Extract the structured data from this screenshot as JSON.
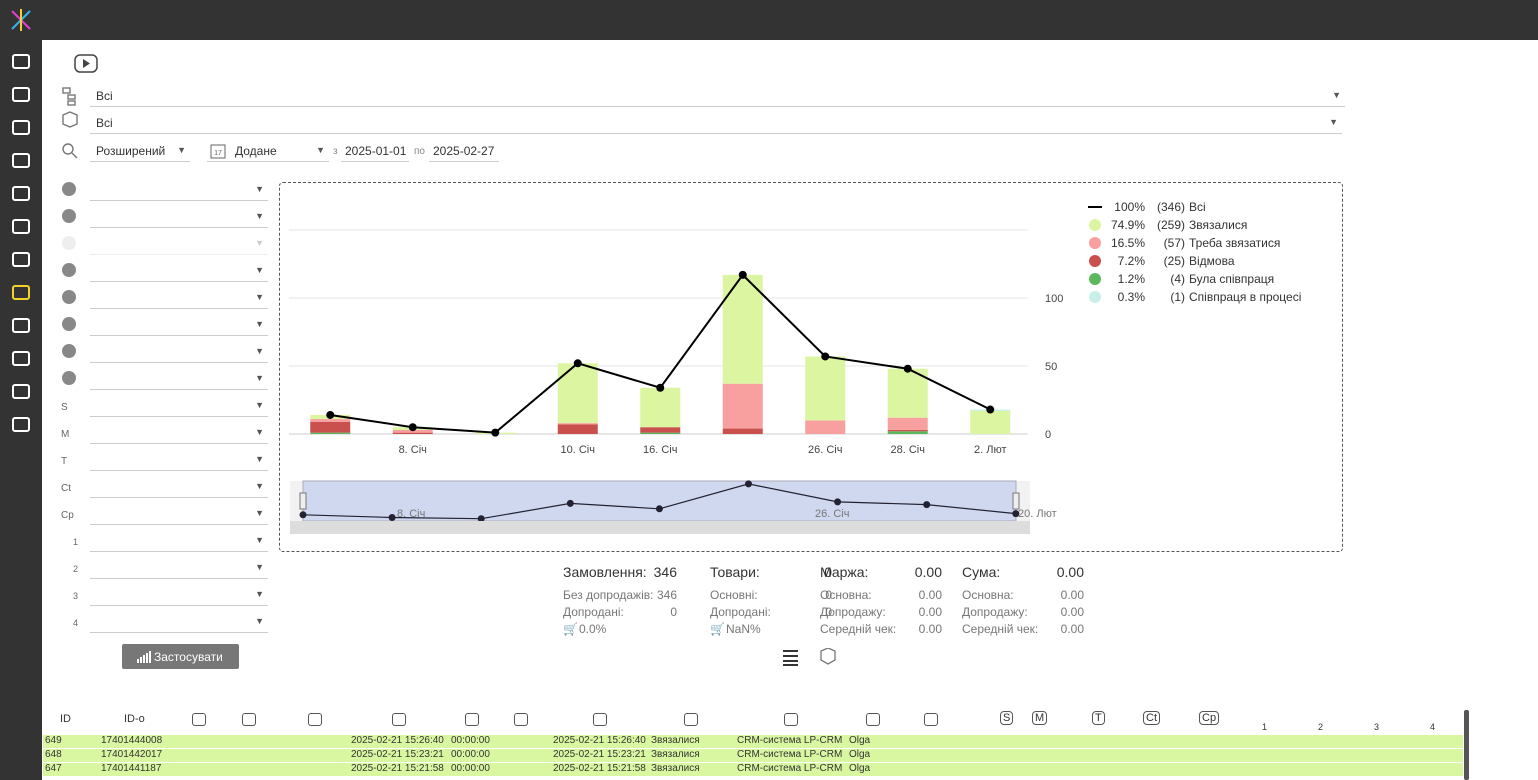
{
  "filters": {
    "branch": "Всі",
    "product": "Всі",
    "search_mode": "Розширений",
    "date_field": "Додане",
    "from_label": "з",
    "from": "2025-01-01",
    "to_label": "по",
    "to": "2025-02-27",
    "apply": "Застосувати",
    "icon_labels": [
      "S",
      "M",
      "T",
      "Ct",
      "Cp",
      "1",
      "2",
      "3",
      "4"
    ]
  },
  "chart_data": {
    "type": "bar",
    "stacked": true,
    "categories": [
      null,
      "8. Січ",
      null,
      "10. Січ",
      "16. Січ",
      null,
      "26. Січ",
      "28. Січ",
      "2. Лют"
    ],
    "ylim": [
      0,
      150
    ],
    "yticks": [
      0,
      50,
      100
    ],
    "grid": true,
    "legend": "right",
    "series": [
      {
        "name": "Всі",
        "type": "line",
        "color": "#000000",
        "values": [
          14,
          5,
          1,
          52,
          34,
          117,
          57,
          48,
          18
        ],
        "percent_label": "100%",
        "count_label": "(346)"
      },
      {
        "name": "Звязалися",
        "color": "#dcf5a0",
        "values": [
          3,
          2,
          1,
          44,
          29,
          80,
          47,
          36,
          17
        ],
        "percent_label": "74.9%",
        "count_label": "(259)"
      },
      {
        "name": "Треба звязатися",
        "color": "#f8a0a0",
        "values": [
          2,
          2,
          0,
          1,
          0,
          33,
          10,
          9,
          0
        ],
        "percent_label": "16.5%",
        "count_label": "(57)"
      },
      {
        "name": "Відмова",
        "color": "#c9504d",
        "values": [
          8,
          1,
          0,
          7,
          4,
          4,
          0,
          1,
          0
        ],
        "percent_label": "7.2%",
        "count_label": "(25)"
      },
      {
        "name": "Була співпраця",
        "color": "#5cb85c",
        "values": [
          1,
          0,
          0,
          0,
          1,
          0,
          0,
          2,
          0
        ],
        "percent_label": "1.2%",
        "count_label": "(4)"
      },
      {
        "name": "Співпраця в процесі",
        "color": "#c8f0e8",
        "values": [
          0,
          0,
          0,
          0,
          0,
          0,
          0,
          0,
          1
        ],
        "percent_label": "0.3%",
        "count_label": "(1)"
      }
    ],
    "navigator_labels": [
      "8. Січ",
      "26. Січ",
      "20. Лют"
    ]
  },
  "summary": [
    {
      "title": "Замовлення:",
      "value": "346",
      "rows": [
        [
          "Без допродажів:",
          "346"
        ],
        [
          "Допродані:",
          "0"
        ],
        [
          "0.0%"
        ]
      ]
    },
    {
      "title": "Товари:",
      "value": "0",
      "rows": [
        [
          "Основні:",
          "0"
        ],
        [
          "Допродані:",
          "0"
        ],
        [
          "NaN%"
        ]
      ]
    },
    {
      "title": "Маржа:",
      "value": "0.00",
      "rows": [
        [
          "Основна:",
          "0.00"
        ],
        [
          "Допродажу:",
          "0.00"
        ],
        [
          "Середній чек:",
          "0.00"
        ]
      ]
    },
    {
      "title": "Сума:",
      "value": "0.00",
      "rows": [
        [
          "Основна:",
          "0.00"
        ],
        [
          "Допродажу:",
          "0.00"
        ],
        [
          "Середній чек:",
          "0.00"
        ]
      ]
    }
  ],
  "table": {
    "header": [
      "ID",
      "ID-o",
      "S",
      "M",
      "T",
      "Ct",
      "Cp",
      "1",
      "2",
      "3",
      "4"
    ],
    "rows": [
      [
        "649",
        "17401444008",
        "2025-02-21 15:26:40",
        "00:00:00",
        "2025-02-21 15:26:40",
        "Звязалися",
        "CRM-система LP-CRM",
        "Olga"
      ],
      [
        "648",
        "17401442017",
        "2025-02-21 15:23:21",
        "00:00:00",
        "2025-02-21 15:23:21",
        "Звязалися",
        "CRM-система LP-CRM",
        "Olga"
      ],
      [
        "647",
        "17401441187",
        "2025-02-21 15:21:58",
        "00:00:00",
        "2025-02-21 15:21:58",
        "Звязалися",
        "CRM-система LP-CRM",
        "Olga"
      ]
    ]
  }
}
